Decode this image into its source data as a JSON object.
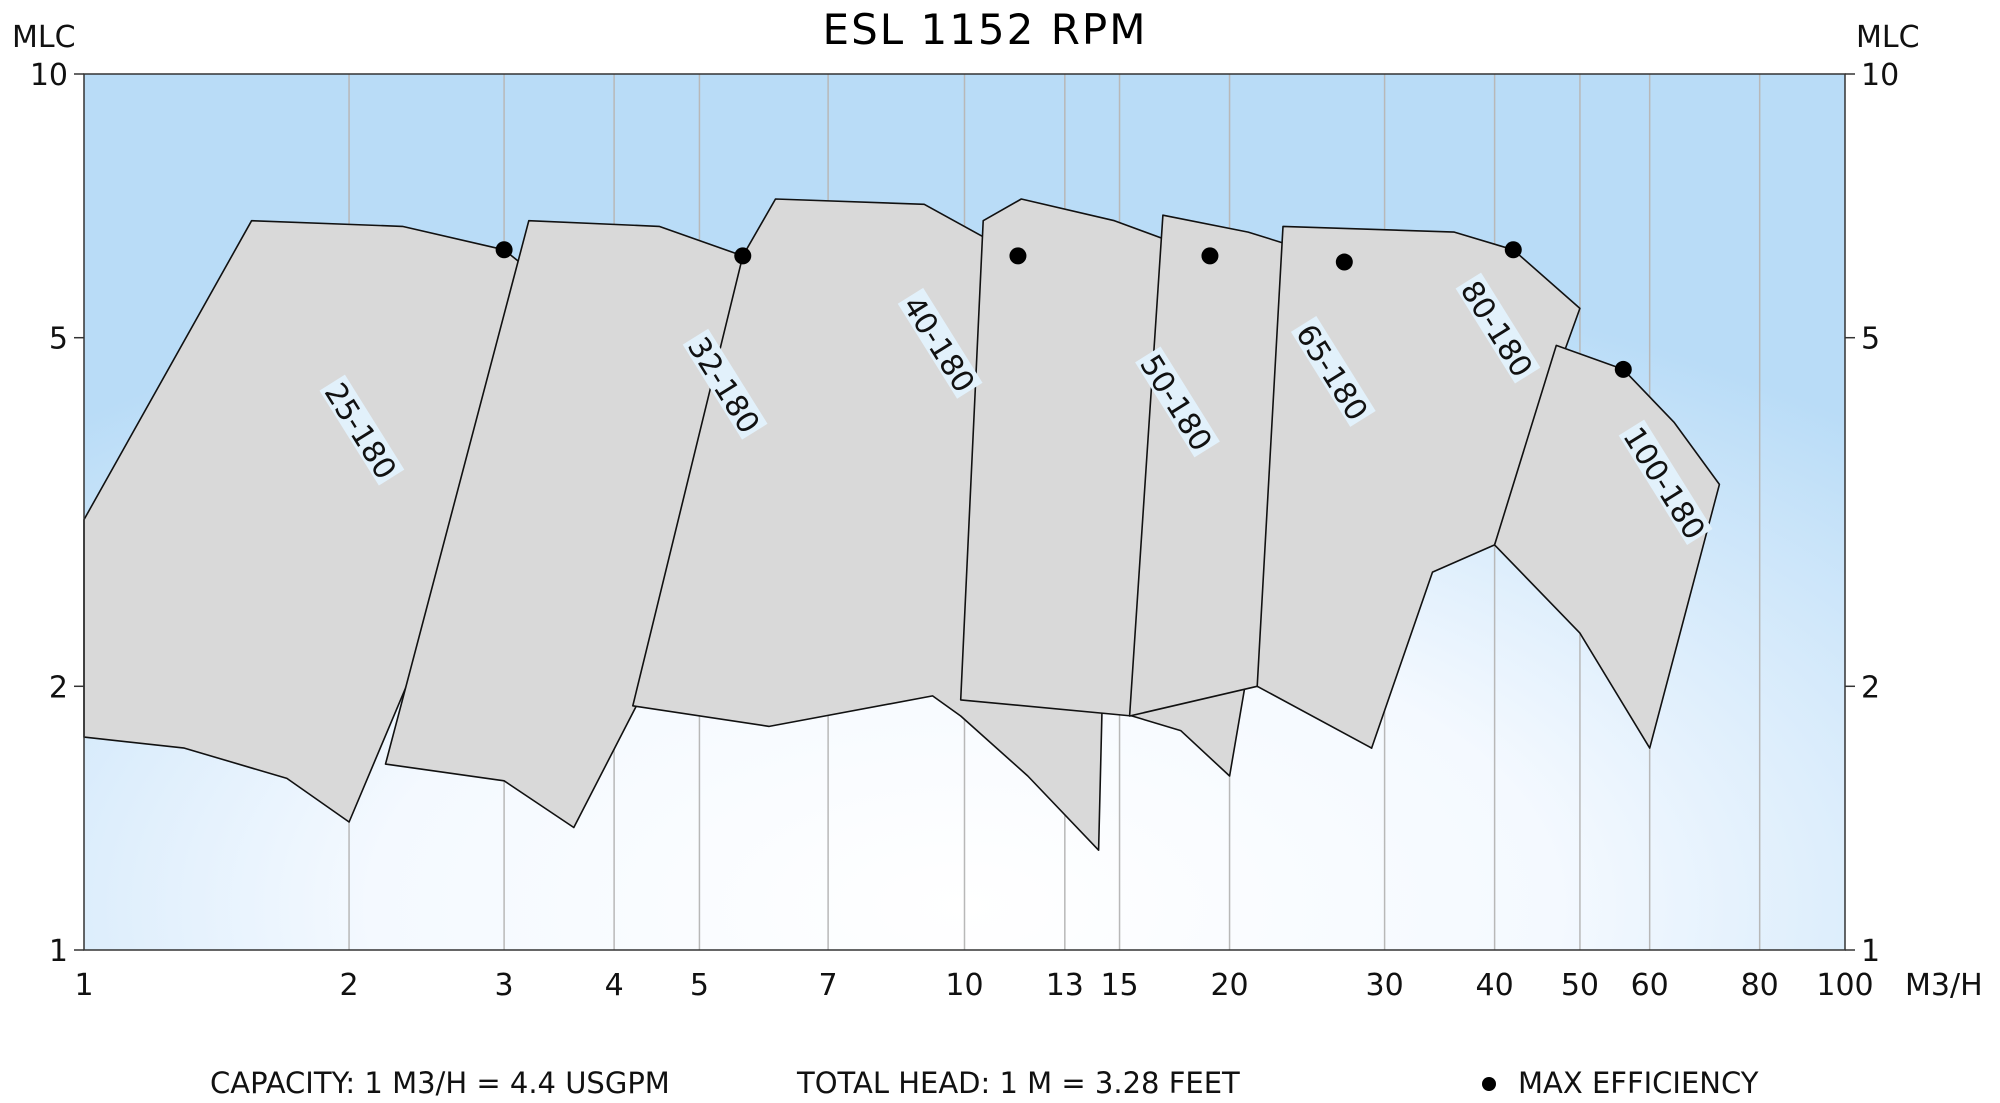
{
  "chart_data": {
    "type": "area",
    "title": "ESL 1152 RPM",
    "xlabel": "M3/H",
    "ylabel_left": "MLC",
    "ylabel_right": "MLC",
    "x_scale": "log",
    "y_scale": "log",
    "xlim": [
      1,
      100
    ],
    "ylim": [
      1,
      10
    ],
    "x_ticks": [
      1,
      2,
      3,
      4,
      5,
      7,
      10,
      13,
      15,
      20,
      30,
      40,
      50,
      60,
      80,
      100
    ],
    "x_tick_labels": [
      "1",
      "2",
      "3",
      "4",
      "5",
      "7",
      "10",
      "13",
      "15",
      "20",
      "30",
      "40",
      "50",
      "60",
      "80",
      "100"
    ],
    "y_ticks": [
      1,
      2,
      5,
      10
    ],
    "y_tick_labels": [
      "1",
      "2",
      "5",
      "10"
    ],
    "grid": true,
    "legend": {
      "marker_label": "MAX EFFICIENCY",
      "position": "bottom-right"
    },
    "footnotes": {
      "capacity": "CAPACITY: 1 M3/H = 4.4 USGPM",
      "head": "TOTAL HEAD: 1 M = 3.28 FEET"
    },
    "series": [
      {
        "name": "25-180",
        "max_eff": [
          3.0,
          6.3
        ],
        "outline": [
          [
            1.0,
            3.1
          ],
          [
            1.55,
            6.8
          ],
          [
            2.3,
            6.7
          ],
          [
            3.0,
            6.3
          ],
          [
            3.55,
            5.5
          ],
          [
            2.0,
            1.4
          ],
          [
            1.7,
            1.57
          ],
          [
            1.3,
            1.7
          ],
          [
            1.0,
            1.75
          ]
        ],
        "label_at": [
          2.05,
          3.9
        ]
      },
      {
        "name": "32-180",
        "max_eff": [
          5.6,
          6.2
        ],
        "outline": [
          [
            2.2,
            1.63
          ],
          [
            3.2,
            6.8
          ],
          [
            4.5,
            6.7
          ],
          [
            5.6,
            6.2
          ],
          [
            7.1,
            5.2
          ],
          [
            3.6,
            1.38
          ],
          [
            3.0,
            1.56
          ],
          [
            2.2,
            1.63
          ]
        ],
        "label_at": [
          5.3,
          4.4
        ]
      },
      {
        "name": "40-180",
        "max_eff": [
          11.5,
          6.2
        ],
        "outline": [
          [
            4.2,
            1.9
          ],
          [
            5.6,
            6.2
          ],
          [
            6.1,
            7.2
          ],
          [
            9.0,
            7.1
          ],
          [
            11.5,
            6.2
          ],
          [
            14.7,
            5.4
          ],
          [
            14.2,
            1.3
          ],
          [
            11.8,
            1.58
          ],
          [
            9.9,
            1.85
          ],
          [
            9.2,
            1.95
          ],
          [
            6.0,
            1.8
          ],
          [
            4.2,
            1.9
          ]
        ],
        "label_at": [
          9.3,
          4.9
        ]
      },
      {
        "name": "50-180",
        "max_eff": [
          19.0,
          6.2
        ],
        "outline": [
          [
            9.9,
            1.93
          ],
          [
            10.5,
            6.8
          ],
          [
            11.6,
            7.2
          ],
          [
            14.8,
            6.8
          ],
          [
            19.0,
            6.2
          ],
          [
            24.5,
            5.2
          ],
          [
            20.0,
            1.58
          ],
          [
            17.6,
            1.78
          ],
          [
            15.5,
            1.85
          ],
          [
            9.9,
            1.93
          ]
        ],
        "label_at": [
          17.3,
          4.2
        ]
      },
      {
        "name": "65-180",
        "max_eff": [
          27.0,
          6.1
        ],
        "outline": [
          [
            15.4,
            1.85
          ],
          [
            16.8,
            6.9
          ],
          [
            21.0,
            6.6
          ],
          [
            27.0,
            6.1
          ],
          [
            34.0,
            5.2
          ],
          [
            29.0,
            1.7
          ],
          [
            24.0,
            1.95
          ],
          [
            21.5,
            2.0
          ],
          [
            15.4,
            1.85
          ]
        ],
        "label_at": [
          26.0,
          4.55
        ]
      },
      {
        "name": "80-180",
        "max_eff": [
          42.0,
          6.3
        ],
        "outline": [
          [
            21.5,
            2.0
          ],
          [
            23.0,
            6.7
          ],
          [
            36.0,
            6.6
          ],
          [
            42.0,
            6.3
          ],
          [
            50.0,
            5.4
          ],
          [
            40.0,
            2.9
          ],
          [
            34.0,
            2.7
          ],
          [
            29.0,
            1.7
          ],
          [
            21.5,
            2.0
          ]
        ],
        "label_at": [
          40.0,
          5.1
        ]
      },
      {
        "name": "100-180",
        "max_eff": [
          56.0,
          4.6
        ],
        "outline": [
          [
            47.0,
            4.9
          ],
          [
            56.0,
            4.6
          ],
          [
            64.0,
            4.0
          ],
          [
            72.0,
            3.4
          ],
          [
            60.0,
            1.7
          ],
          [
            50.0,
            2.3
          ],
          [
            40.0,
            2.9
          ],
          [
            47.0,
            4.9
          ]
        ],
        "label_at": [
          62.0,
          3.4
        ]
      }
    ]
  }
}
